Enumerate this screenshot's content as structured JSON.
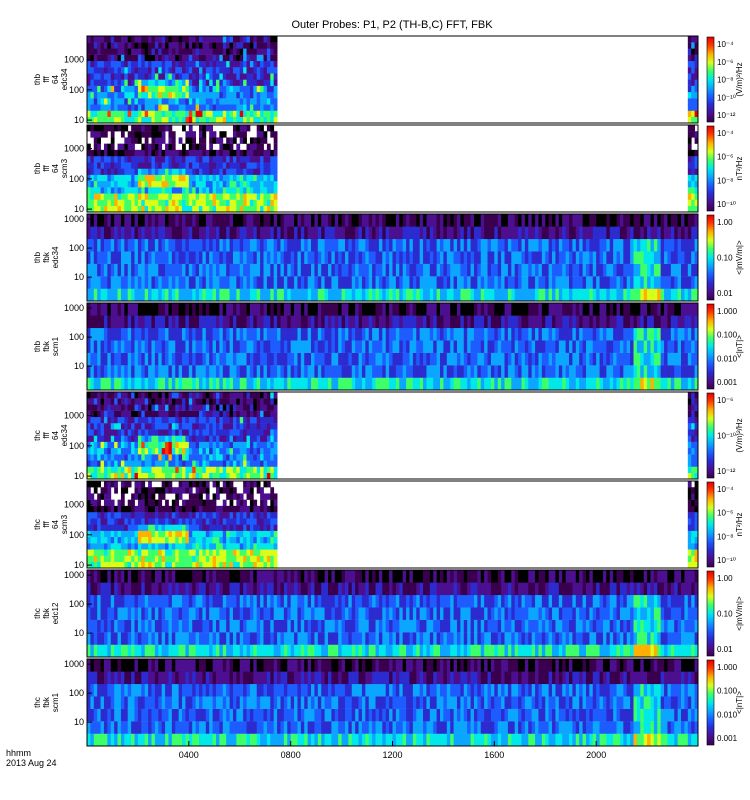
{
  "title": "Outer Probes: P1, P2 (TH-B,C) FFT, FBK",
  "footer": {
    "time_label": "hhmm",
    "date_label": "2013 Aug 24"
  },
  "x_axis": {
    "range": [
      "00:00",
      "24:00"
    ],
    "ticks": [
      {
        "label": "0400",
        "hours": 4
      },
      {
        "label": "0800",
        "hours": 8
      },
      {
        "label": "1200",
        "hours": 12
      },
      {
        "label": "1600",
        "hours": 16
      },
      {
        "label": "2000",
        "hours": 20
      }
    ]
  },
  "palette": [
    "#000000",
    "#3a004f",
    "#4b0f8f",
    "#2b2bcf",
    "#1d5cff",
    "#0aa6ff",
    "#00e8e8",
    "#3cff6a",
    "#d8ff1a",
    "#ffb000",
    "#ff3c00",
    "#e60000"
  ],
  "chart_data": [
    {
      "type": "heatmap",
      "id": "thb-fff-e",
      "ylabel_lines": [
        "thb",
        "fff",
        "64",
        "edc34"
      ],
      "yscale": "log",
      "ylim": [
        8,
        6000
      ],
      "y_ticks": [
        "10",
        "100",
        "1000"
      ],
      "colorbar_label": "(V/m)²/Hz",
      "colorbar_ticks": [
        "10⁻⁴",
        "10⁻⁶",
        "10⁻⁸",
        "10⁻¹⁰",
        "10⁻¹²"
      ],
      "colorbar_scale": "log",
      "data_coverage_hours": [
        [
          0,
          7.5
        ],
        [
          23.6,
          24
        ]
      ],
      "style": "fff-e"
    },
    {
      "type": "heatmap",
      "id": "thb-fff-b",
      "ylabel_lines": [
        "thb",
        "fff",
        "64",
        "scm3"
      ],
      "yscale": "log",
      "ylim": [
        8,
        6000
      ],
      "y_ticks": [
        "10",
        "100",
        "1000"
      ],
      "colorbar_label": "nT²/Hz",
      "colorbar_ticks": [
        "10⁻⁴",
        "10⁻⁶",
        "10⁻⁸",
        "10⁻¹⁰"
      ],
      "colorbar_scale": "log",
      "data_coverage_hours": [
        [
          0,
          7.5
        ],
        [
          23.6,
          24
        ]
      ],
      "style": "fff-b"
    },
    {
      "type": "heatmap",
      "id": "thb-fbk-e",
      "ylabel_lines": [
        "thb",
        "fbk",
        "edc34"
      ],
      "yscale": "log",
      "ylim": [
        1.5,
        1500
      ],
      "y_ticks": [
        "10",
        "100",
        "1000"
      ],
      "colorbar_label": "<|mV/m|>",
      "colorbar_ticks": [
        "1.00",
        "0.10",
        "0.01"
      ],
      "colorbar_scale": "log",
      "data_coverage_hours": [
        [
          0,
          24
        ]
      ],
      "style": "fbk"
    },
    {
      "type": "heatmap",
      "id": "thb-fbk-b",
      "ylabel_lines": [
        "thb",
        "fbk",
        "scm1"
      ],
      "yscale": "log",
      "ylim": [
        1.5,
        1500
      ],
      "y_ticks": [
        "10",
        "100",
        "1000"
      ],
      "colorbar_label": "<|nT|>",
      "colorbar_ticks": [
        "1.000",
        "0.100",
        "0.010",
        "0.001"
      ],
      "colorbar_scale": "log",
      "data_coverage_hours": [
        [
          0,
          24
        ]
      ],
      "style": "fbk"
    },
    {
      "type": "heatmap",
      "id": "thc-fff-e",
      "ylabel_lines": [
        "thc",
        "fff",
        "64",
        "edc34"
      ],
      "yscale": "log",
      "ylim": [
        8,
        6000
      ],
      "y_ticks": [
        "10",
        "100",
        "1000"
      ],
      "colorbar_label": "(V/m)²/Hz",
      "colorbar_ticks": [
        "10⁻⁶",
        "10⁻¹⁰",
        "10⁻¹²"
      ],
      "colorbar_scale": "log",
      "data_coverage_hours": [
        [
          0,
          7.5
        ],
        [
          23.6,
          24
        ]
      ],
      "style": "fff-e"
    },
    {
      "type": "heatmap",
      "id": "thc-fff-b",
      "ylabel_lines": [
        "thc",
        "fff",
        "64",
        "scm3"
      ],
      "yscale": "log",
      "ylim": [
        8,
        6000
      ],
      "y_ticks": [
        "10",
        "100",
        "1000"
      ],
      "colorbar_label": "nT²/Hz",
      "colorbar_ticks": [
        "10⁻⁴",
        "10⁻⁶",
        "10⁻⁸",
        "10⁻¹⁰"
      ],
      "colorbar_scale": "log",
      "data_coverage_hours": [
        [
          0,
          7.5
        ],
        [
          23.6,
          24
        ]
      ],
      "style": "fff-b"
    },
    {
      "type": "heatmap",
      "id": "thc-fbk-e",
      "ylabel_lines": [
        "thc",
        "fbk",
        "edc12"
      ],
      "yscale": "log",
      "ylim": [
        1.5,
        1500
      ],
      "y_ticks": [
        "10",
        "100",
        "1000"
      ],
      "colorbar_label": "<|mV/m|>",
      "colorbar_ticks": [
        "1.00",
        "0.10",
        "0.01"
      ],
      "colorbar_scale": "log",
      "data_coverage_hours": [
        [
          0,
          24
        ]
      ],
      "style": "fbk"
    },
    {
      "type": "heatmap",
      "id": "thc-fbk-b",
      "ylabel_lines": [
        "thc",
        "fbk",
        "scm1"
      ],
      "yscale": "log",
      "ylim": [
        1.5,
        1500
      ],
      "y_ticks": [
        "1000",
        "100",
        "10"
      ],
      "colorbar_label": "<|nT|>",
      "colorbar_ticks": [
        "1.000",
        "0.100",
        "0.010",
        "0.001"
      ],
      "colorbar_scale": "log",
      "data_coverage_hours": [
        [
          0,
          24
        ]
      ],
      "style": "fbk"
    }
  ]
}
